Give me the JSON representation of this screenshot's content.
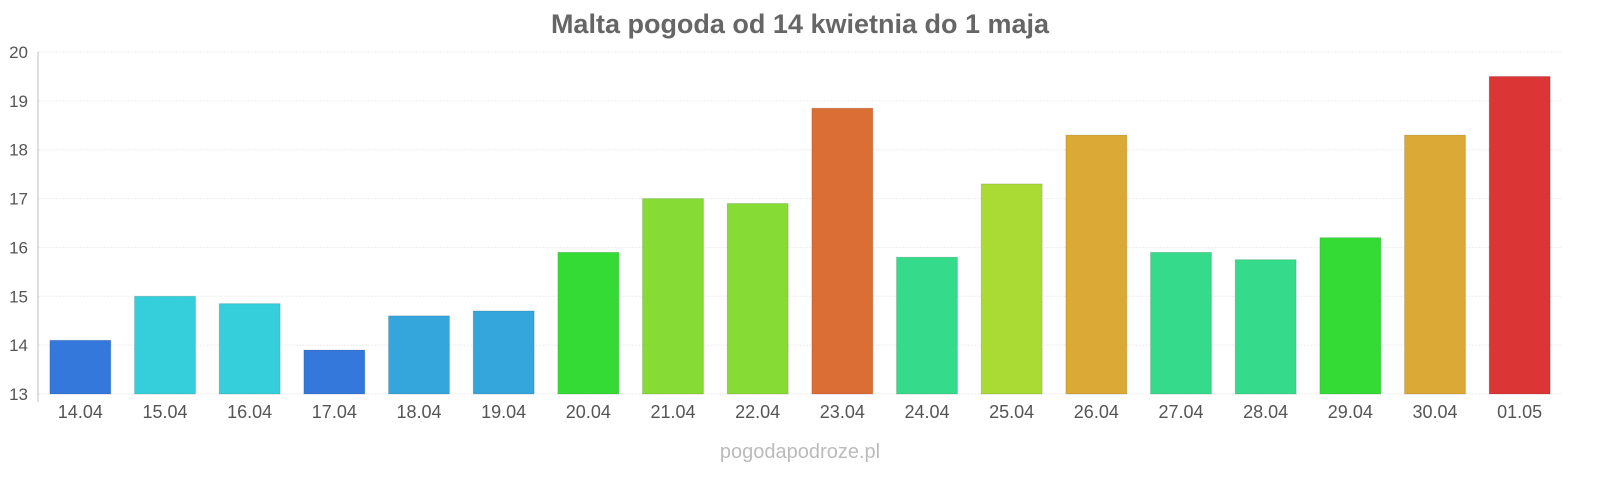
{
  "chart_data": {
    "type": "bar",
    "title": "Malta pogoda od 14 kwietnia do 1 maja",
    "xlabel": "",
    "ylabel": "",
    "ylim": [
      13,
      20
    ],
    "yticks": [
      "13",
      "14",
      "15",
      "16",
      "17",
      "18",
      "19",
      "20"
    ],
    "grid": true,
    "categories": [
      "14.04",
      "15.04",
      "16.04",
      "17.04",
      "18.04",
      "19.04",
      "20.04",
      "21.04",
      "22.04",
      "23.04",
      "24.04",
      "25.04",
      "26.04",
      "27.04",
      "28.04",
      "29.04",
      "30.04",
      "01.05"
    ],
    "values": [
      14.1,
      15.0,
      14.85,
      13.9,
      14.6,
      14.7,
      15.9,
      17.0,
      16.9,
      18.85,
      15.8,
      17.3,
      18.3,
      15.9,
      15.75,
      16.2,
      18.3,
      19.5
    ],
    "colors": [
      "#3578db",
      "#35cedb",
      "#35cedb",
      "#3578db",
      "#35a6db",
      "#35a6db",
      "#35db35",
      "#86db35",
      "#86db35",
      "#db6e35",
      "#35db8a",
      "#aadb35",
      "#dba935",
      "#35db8a",
      "#35db8a",
      "#35db35",
      "#dba935",
      "#db3535"
    ]
  },
  "watermark": "pogodapodroze.pl"
}
